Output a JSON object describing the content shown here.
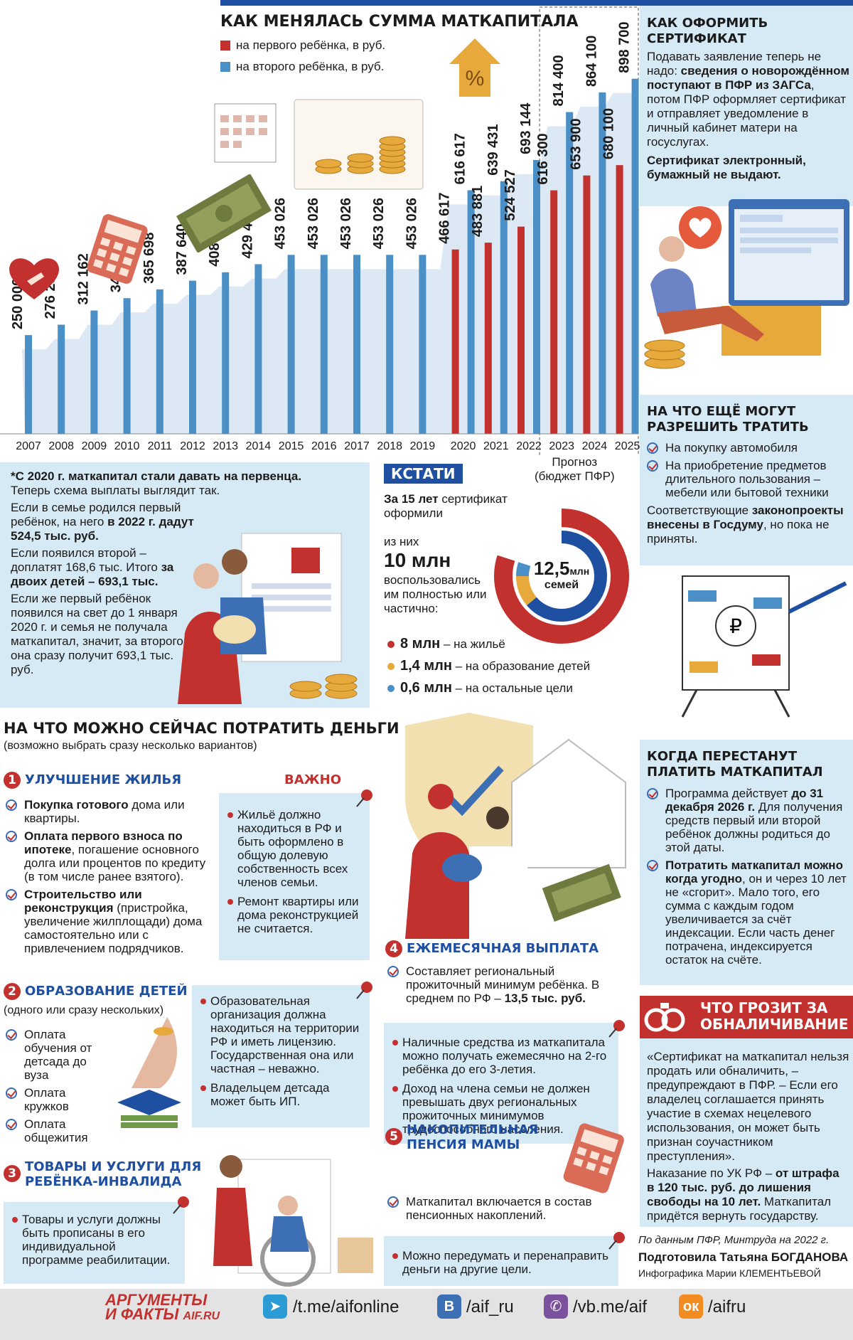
{
  "chart_data": {
    "type": "bar",
    "title": "КАК МЕНЯЛАСЬ СУММА МАТКАПИТАЛА",
    "categories": [
      "2007",
      "2008",
      "2009",
      "2010",
      "2011",
      "2012",
      "2013",
      "2014",
      "2015",
      "2016",
      "2017",
      "2018",
      "2019",
      "2020",
      "2021",
      "2022",
      "2023",
      "2024",
      "2025"
    ],
    "series": [
      {
        "name": "на первого ребёнка, в руб.",
        "color": "#c3312f",
        "values": [
          null,
          null,
          null,
          null,
          null,
          null,
          null,
          null,
          null,
          null,
          null,
          null,
          null,
          466617,
          483881,
          524527,
          616300,
          653900,
          680100
        ],
        "labels": [
          "",
          "",
          "",
          "",
          "",
          "",
          "",
          "",
          "",
          "",
          "",
          "",
          "",
          "466 617",
          "483 881",
          "524 527",
          "616 300",
          "653 900",
          "680 100"
        ]
      },
      {
        "name": "на второго ребёнка, в руб.",
        "color": "#4a8fc6",
        "values": [
          250000,
          276250,
          312162,
          343378,
          365698,
          387640,
          408960,
          429408,
          453026,
          453026,
          453026,
          453026,
          453026,
          616617,
          639431,
          693144,
          814400,
          864100,
          898700
        ],
        "labels": [
          "250 000",
          "276 250",
          "312 162",
          "343 378",
          "365 698",
          "387 640",
          "408 960",
          "429 408",
          "453 026",
          "453 026",
          "453 026",
          "453 026",
          "453 026",
          "616 617",
          "639 431",
          "693 144",
          "814 400",
          "864 100",
          "898 700"
        ]
      }
    ],
    "forecast_label_1": "Прогноз",
    "forecast_label_2": "(бюджет ПФР)",
    "grid": false,
    "legend": "top-left"
  },
  "howto": {
    "title_1": "КАК ОФОРМИТЬ",
    "title_2": "СЕРТИФИКАТ",
    "p1_a": "Подавать заявление теперь не надо: ",
    "p1_b": "сведения о новорождённом поступают в ПФР из ЗАГСа",
    "p1_c": ", потом ПФР оформляет сертификат и отправляет уведомление в личный кабинет матери на госуслугах.",
    "p2": "Сертификат электронный, бумажный не выдают."
  },
  "allow": {
    "title_1": "НА ЧТО ЕЩЁ МОГУТ",
    "title_2": "РАЗРЕШИТЬ ТРАТИТЬ",
    "item1": "На покупку автомобиля",
    "item2": "На приобретение предметов длительного пользования – мебели или бытовой техники",
    "note_a": "Соответствующие ",
    "note_b": "законопроекты внесены в Госдуму",
    "note_c": ", но пока не приняты."
  },
  "first": {
    "p1": "*С 2020 г. маткапитал стали давать на первенца.",
    "p1b": "Теперь схема выплаты выглядит так.",
    "p2_a": "Если в семье родился первый ребёнок, на него ",
    "p2_b": "в 2022 г. дадут 524,5 тыс. руб.",
    "p3_a": "Если появился второй – доплатят 168,6 тыс. Итого ",
    "p3_b": "за двоих детей – 693,1 тыс.",
    "p4": "Если же первый ребёнок появился на свет до 1 января 2020 г. и семья не получала маткапитал, значит, за второго она сразу получит 693,1 тыс. руб."
  },
  "kstati": {
    "tag": "КСТАТИ",
    "l1_a": "За 15 лет",
    "l1_b": " сертификат оформили",
    "l2": "из них",
    "l3": "10 млн",
    "l4": "воспользовались им полностью или частично:",
    "center_num": "12,5",
    "center_unit": "млн",
    "center_sub": "семей",
    "items": [
      {
        "value": "8 млн",
        "text": " – на жильё",
        "color": "#c3312f"
      },
      {
        "value": "1,4 млн",
        "text": " – на образование детей",
        "color": "#e8a93c"
      },
      {
        "value": "0,6 млн",
        "text": " – на остальные цели",
        "color": "#4a8fc6"
      }
    ]
  },
  "spend": {
    "title": "НА ЧТО МОЖНО СЕЙЧАС ПОТРАТИТЬ ДЕНЬГИ",
    "subtitle": "(возможно выбрать сразу несколько вариантов)",
    "important": "ВАЖНО",
    "s1_num": "1",
    "s1_title": "УЛУЧШЕНИЕ ЖИЛЬЯ",
    "s1_i1_a": "Покупка готового",
    "s1_i1_b": " дома или квартиры.",
    "s1_i2_a": "Оплата первого взноса по ипотеке",
    "s1_i2_b": ", погашение основного долга или процентов по кредиту (в том числе ранее взятого).",
    "s1_i3_a": "Строительство или реконструкция",
    "s1_i3_b": " (пристройка, увеличение жилплощади) дома самостоятельно или с привлечением подрядчиков.",
    "s1_note1": "Жильё должно находиться в РФ и быть оформлено в общую долевую собственность всех членов семьи.",
    "s1_note2": "Ремонт квартиры или дома реконструкцией не считается.",
    "s2_num": "2",
    "s2_title": "ОБРАЗОВАНИЕ ДЕТЕЙ",
    "s2_sub": "(одного или сразу нескольких)",
    "s2_i1": "Оплата обучения от детсада до вуза",
    "s2_i2": "Оплата кружков",
    "s2_i3": "Оплата общежития",
    "s2_note1": "Образовательная организация должна находиться на территории РФ и иметь лицензию. Государственная она или частная – неважно.",
    "s2_note2": "Владельцем детсада может быть ИП.",
    "s3_num": "3",
    "s3_title_1": "ТОВАРЫ И УСЛУГИ ДЛЯ",
    "s3_title_2": "РЕБЁНКА-ИНВАЛИДА",
    "s3_note": "Товары и услуги должны быть прописаны в его индивидуальной программе реабилитации.",
    "s4_num": "4",
    "s4_title": "ЕЖЕМЕСЯЧНАЯ ВЫПЛАТА",
    "s4_i1_a": "Составляет региональный прожиточный минимум ребёнка. В среднем по РФ – ",
    "s4_i1_b": "13,5 тыс. руб.",
    "s4_note1": "Наличные средства из маткапитала можно получать ежемесячно на 2-го ребёнка до его 3-летия.",
    "s4_note2": "Доход на члена семьи не должен превышать двух региональных прожиточных минимумов трудоспособного населения.",
    "s5_num": "5",
    "s5_title_1": "НАКОПИТЕЛЬНАЯ",
    "s5_title_2": "ПЕНСИЯ МАМЫ",
    "s5_i1": "Маткапитал включается в состав пенсионных накоплений.",
    "s5_note": "Можно передумать и перенаправить деньги на другие цели."
  },
  "stop": {
    "title_1": "КОГДА ПЕРЕСТАНУТ",
    "title_2": "ПЛАТИТЬ МАТКАПИТАЛ",
    "i1_a": "Программа действует ",
    "i1_b": "до 31 декабря 2026 г.",
    "i1_c": " Для получения средств первый или второй ребёнок должны родиться до этой даты.",
    "i2_a": "Потратить маткапитал можно когда угодно",
    "i2_b": ", он и через 10 лет не «сгорит». Мало того, его сумма с каждым годом увеличивается за счёт индексации. Если часть денег потрачена, индексируется остаток на счёте."
  },
  "cash": {
    "title_1": "ЧТО ГРОЗИТ ЗА",
    "title_2": "ОБНАЛИЧИВАНИЕ",
    "p1": "«Сертификат на маткапитал нельзя продать или обналичить, – предупреждают в ПФР. – Если его владелец соглашается принять участие в схемах нецелевого использования, он может быть признан соучастником преступления».",
    "p2_a": "Наказание по УК РФ – ",
    "p2_b": "от штрафа в 120 тыс. руб. до лишения свободы на 10 лет.",
    "p2_c": " Маткапитал придётся вернуть государству."
  },
  "credits": {
    "source": "По данным ПФР, Минтруда на 2022 г.",
    "author_a": "Подготовила Татьяна ",
    "author_b": "БОГДАНОВА",
    "graphics": "Инфографика Марии КЛЕМЕНТЬЕВОЙ"
  },
  "footer": {
    "brand_1": "АРГУМЕНТЫ",
    "brand_2": "И ФАКТЫ",
    "brand_site": "AIF.RU",
    "links": [
      {
        "icon": "telegram-icon",
        "text": "/t.me/aifonline",
        "color": "#2b9bd6"
      },
      {
        "icon": "vk-icon",
        "text": "/aif_ru",
        "color": "#3d6fb5"
      },
      {
        "icon": "viber-icon",
        "text": "/vb.me/aif",
        "color": "#7b519d"
      },
      {
        "icon": "ok-icon",
        "text": "/aifru",
        "color": "#f28b20"
      }
    ]
  },
  "colors": {
    "red": "#c3312f",
    "blue": "#4a8fc6",
    "panel": "#d6eaf6",
    "navy": "#1f4fa0",
    "orange": "#e8a93c"
  }
}
